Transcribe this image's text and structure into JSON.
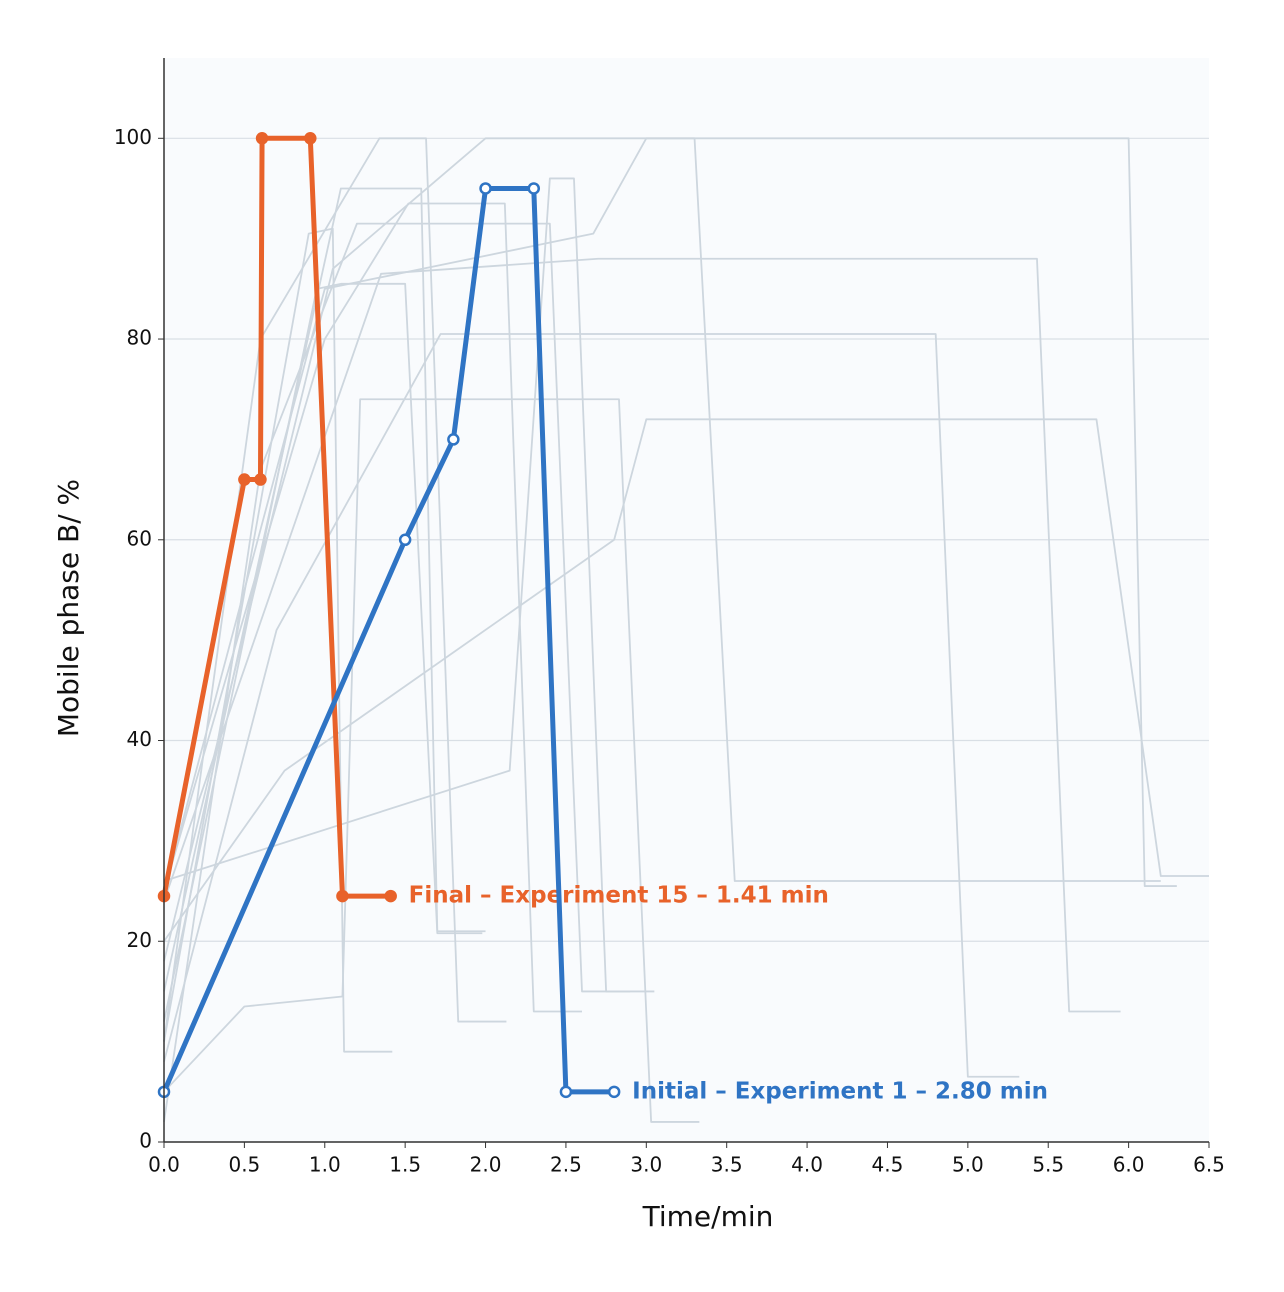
{
  "chart_data": {
    "type": "line",
    "x_label": "Time/min",
    "y_label": "Mobile phase B/ %",
    "xlim": [
      0,
      6.5
    ],
    "ylim": [
      0,
      108
    ],
    "xticks": [
      {
        "value": 0,
        "label": "0.0"
      },
      0.5,
      {
        "value": 1,
        "label": "1.0"
      },
      1.5,
      {
        "value": 2,
        "label": "2.0"
      },
      2.5,
      {
        "value": 3,
        "label": "3.0"
      },
      3.5,
      {
        "value": 4,
        "label": "4.0"
      },
      4.5,
      {
        "value": 5,
        "label": "5.0"
      },
      5.5,
      {
        "value": 6,
        "label": "6.0"
      },
      6.5
    ],
    "yticks": [
      0,
      20,
      40,
      60,
      80,
      100
    ],
    "grid": true,
    "series": [
      {
        "color": "#cdd6de",
        "x": [
          0,
          1.1,
          1.6,
          1.7,
          2.0
        ],
        "values": [
          15,
          95,
          95,
          21,
          21
        ]
      },
      {
        "color": "#cdd6de",
        "x": [
          0,
          0.6,
          1.34,
          1.63,
          1.83,
          2.13
        ],
        "values": [
          10,
          80,
          100,
          100,
          12,
          12
        ]
      },
      {
        "color": "#cdd6de",
        "x": [
          0,
          1.0,
          1.52,
          2.12,
          2.3,
          2.6
        ],
        "values": [
          25,
          80,
          93.5,
          93.5,
          13,
          13
        ]
      },
      {
        "color": "#cdd6de",
        "x": [
          0,
          0.6,
          1.2,
          2.4,
          2.6,
          2.9
        ],
        "values": [
          2,
          67,
          91.5,
          91.5,
          15,
          15
        ]
      },
      {
        "color": "#cdd6de",
        "x": [
          0,
          1.0,
          2.67,
          3.0,
          6.0,
          6.1,
          6.3
        ],
        "values": [
          25,
          85,
          90.5,
          100,
          100,
          25.5,
          25.5
        ]
      },
      {
        "color": "#cdd6de",
        "x": [
          0,
          0.7,
          1.72,
          4.8,
          5.0,
          5.32
        ],
        "values": [
          8,
          51,
          80.5,
          80.5,
          6.5,
          6.5
        ]
      },
      {
        "color": "#cdd6de",
        "x": [
          0,
          2.15,
          2.4,
          2.55,
          2.75,
          3.05
        ],
        "values": [
          26,
          37,
          96,
          96,
          15,
          15
        ]
      },
      {
        "color": "#cdd6de",
        "x": [
          0,
          0.5,
          1.11,
          1.22,
          2.83,
          3.03,
          3.33
        ],
        "values": [
          5,
          13.5,
          14.5,
          74,
          74,
          2,
          2
        ]
      },
      {
        "color": "#cdd6de",
        "x": [
          0,
          0.75,
          2.8,
          3.0,
          5.8,
          6.2,
          6.5
        ],
        "values": [
          20,
          37,
          60,
          72,
          72,
          26.5,
          26.5
        ]
      },
      {
        "color": "#cdd6de",
        "x": [
          0,
          0.95,
          1.1,
          1.5,
          1.7,
          1.98
        ],
        "values": [
          12,
          85,
          85.5,
          85.5,
          20.8,
          20.8
        ]
      },
      {
        "color": "#cdd6de",
        "x": [
          0,
          1.35,
          2.7,
          5.43,
          5.63,
          5.95
        ],
        "values": [
          24,
          86.5,
          88,
          88,
          13,
          13
        ]
      },
      {
        "color": "#cdd6de",
        "x": [
          0,
          0.9,
          1.05,
          1.12,
          1.42
        ],
        "values": [
          10,
          90.5,
          91,
          9,
          9
        ]
      },
      {
        "color": "#cdd6de",
        "x": [
          0,
          1.05,
          2.0,
          3.3,
          3.55,
          6.2
        ],
        "values": [
          18,
          87,
          100,
          100,
          26,
          26
        ]
      },
      {
        "color": "#e8622a",
        "marker": "filled",
        "annotation": "Final – Experiment 15 – 1.41 min",
        "x": [
          0,
          0.5,
          0.6,
          0.61,
          0.91,
          1.11,
          1.41
        ],
        "values": [
          24.5,
          66,
          66,
          100,
          100,
          24.5,
          24.5
        ]
      },
      {
        "color": "#2f74c4",
        "marker": "hollow",
        "annotation": "Initial – Experiment 1 – 2.80 min",
        "x": [
          0,
          1.5,
          1.8,
          2.0,
          2.3,
          2.5,
          2.8
        ],
        "values": [
          5,
          60,
          70,
          95,
          95,
          5,
          5
        ]
      }
    ]
  }
}
